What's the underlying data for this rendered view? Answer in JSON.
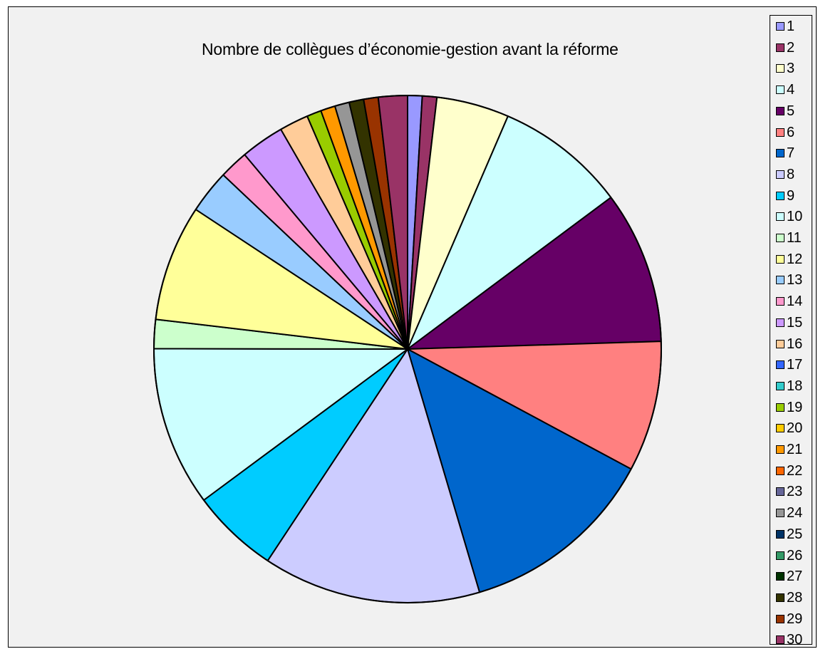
{
  "chart_data": {
    "type": "pie",
    "title": "Nombre de collègues d’économie-gestion  avant la réforme",
    "legend_position": "right",
    "categories": [
      "1",
      "2",
      "3",
      "4",
      "5",
      "6",
      "7",
      "8",
      "9",
      "10",
      "11",
      "12",
      "13",
      "14",
      "15",
      "16",
      "17",
      "18",
      "19",
      "20",
      "21",
      "22",
      "23",
      "24",
      "25",
      "26",
      "27",
      "28",
      "29",
      "30"
    ],
    "values": [
      1.0,
      1.0,
      5.0,
      9.0,
      10.5,
      9.0,
      13.6,
      15.0,
      6.0,
      11.0,
      2.0,
      8.0,
      3.0,
      2.0,
      3.0,
      2.0,
      0,
      0,
      1.0,
      0,
      1.0,
      0,
      0,
      1.0,
      0,
      0,
      0,
      1.0,
      1.0,
      2.0
    ],
    "colors": [
      "#9999ff",
      "#993366",
      "#ffffcc",
      "#ccffff",
      "#660066",
      "#ff8080",
      "#0066cc",
      "#ccccff",
      "#00ccff",
      "#ccffff",
      "#ccffcc",
      "#ffff99",
      "#99ccff",
      "#ff99cc",
      "#cc99ff",
      "#ffcc99",
      "#3366ff",
      "#33cccc",
      "#99cc00",
      "#ffcc00",
      "#ff9900",
      "#ff6600",
      "#666699",
      "#969696",
      "#003366",
      "#339966",
      "#003300",
      "#333300",
      "#993300",
      "#993366"
    ]
  }
}
